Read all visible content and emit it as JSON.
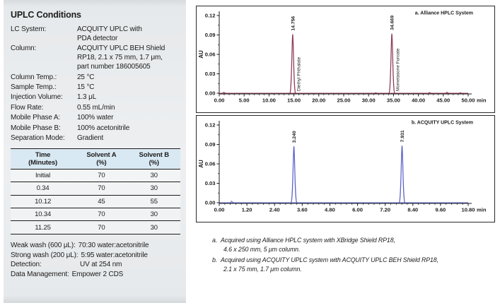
{
  "panel": {
    "title": "UPLC Conditions",
    "rows": [
      {
        "label": "LC System:",
        "value": "ACQUITY UPLC with\nPDA detector"
      },
      {
        "label": "Column:",
        "value": "ACQUITY UPLC BEH Shield\nRP18, 2.1 x 75 mm, 1.7 μm,\npart number 186005605"
      },
      {
        "label": "Column Temp.:",
        "value": "25 °C"
      },
      {
        "label": "Sample Temp.:",
        "value": "15 °C"
      },
      {
        "label": "Injection Volume:",
        "value": "1.3 μL"
      },
      {
        "label": "Flow Rate:",
        "value": "0.55 mL/min"
      },
      {
        "label": "Mobile Phase A:",
        "value": "100% water"
      },
      {
        "label": "Mobile Phase B:",
        "value": "100% acetonitrile"
      },
      {
        "label": "Separation Mode:",
        "value": "Gradient"
      }
    ],
    "gradient_table": {
      "col_headers": [
        {
          "line1": "Time",
          "line2": "(Minutes)"
        },
        {
          "line1": "Solvent A",
          "line2": "(%)"
        },
        {
          "line1": "Solvent B",
          "line2": "(%)"
        }
      ],
      "rows": [
        [
          "Initial",
          "70",
          "30"
        ],
        [
          "0.34",
          "70",
          "30"
        ],
        [
          "10.12",
          "45",
          "55"
        ],
        [
          "10.34",
          "70",
          "30"
        ],
        [
          "11.25",
          "70",
          "30"
        ]
      ]
    },
    "footer_rows": [
      {
        "label": "Weak wash (600 μL):",
        "value": "70:30 water:acetonitrile"
      },
      {
        "label": "Strong wash (200 μL):",
        "value": "5:95 water:acetonitrile"
      },
      {
        "label": "Detection:",
        "value": "UV at 254 nm"
      },
      {
        "label": "Data Management:",
        "value": "Empower 2 CDS"
      }
    ]
  },
  "chart_data": [
    {
      "type": "line",
      "title": "a. Alliance HPLC System",
      "ylabel": "AU",
      "xunit": "min",
      "xlim": [
        0,
        50
      ],
      "ylim": [
        0,
        0.12
      ],
      "xticks": [
        "0.00",
        "5.00",
        "10.00",
        "15.00",
        "20.00",
        "25.00",
        "30.00",
        "35.00",
        "40.00",
        "45.00",
        "50.00"
      ],
      "yticks": [
        "0.00",
        "0.03",
        "0.06",
        "0.09",
        "0.12"
      ],
      "color": "#8e3b59",
      "peaks": [
        {
          "rt": 14.756,
          "label": "14.756",
          "compound": "Diethyl Phthalate",
          "height_au": 0.091
        },
        {
          "rt": 34.669,
          "label": "34.669",
          "compound": "Mometasone Furoate",
          "height_au": 0.092
        }
      ],
      "noise": [
        {
          "x": 1.0,
          "amp": 1.6
        },
        {
          "x": 31.5,
          "amp": 0.8
        },
        {
          "x": 42.3,
          "amp": 1.2
        },
        {
          "x": 45.8,
          "amp": 1.5
        },
        {
          "x": 48.5,
          "amp": 0.8
        }
      ]
    },
    {
      "type": "line",
      "title": "b. ACQUITY UPLC System",
      "ylabel": "AU",
      "xunit": "min",
      "xlim": [
        0,
        10.8
      ],
      "ylim": [
        0,
        0.12
      ],
      "xticks": [
        "0.00",
        "1.20",
        "2.40",
        "3.60",
        "4.80",
        "6.00",
        "7.20",
        "8.40",
        "9.60",
        "10.80"
      ],
      "yticks": [
        "0.00",
        "0.03",
        "0.06",
        "0.09",
        "0.12"
      ],
      "color": "#5b63c8",
      "peaks": [
        {
          "rt": 3.24,
          "label": "3.240",
          "compound": "",
          "height_au": 0.087
        },
        {
          "rt": 7.931,
          "label": "7.931",
          "compound": "",
          "height_au": 0.088
        }
      ],
      "noise": [
        {
          "x": 0.55,
          "amp": 2.4
        }
      ]
    }
  ],
  "captions": [
    {
      "marker": "a.",
      "lines": [
        "Acquired using Alliance HPLC system with XBridge Shield RP18,",
        "4.6 x 250 mm, 5 μm column."
      ]
    },
    {
      "marker": "b.",
      "lines": [
        "Acquired using ACQUITY UPLC system with ACQUITY UPLC BEH Shield RP18,",
        "2.1 x 75 mm, 1.7 μm column."
      ]
    }
  ],
  "colors": {
    "chromatogram_a": "#8e3b59",
    "chromatogram_b": "#5b63c8",
    "table_header_bg": "#d9e9f3",
    "panel_bg": "#edeff1"
  }
}
